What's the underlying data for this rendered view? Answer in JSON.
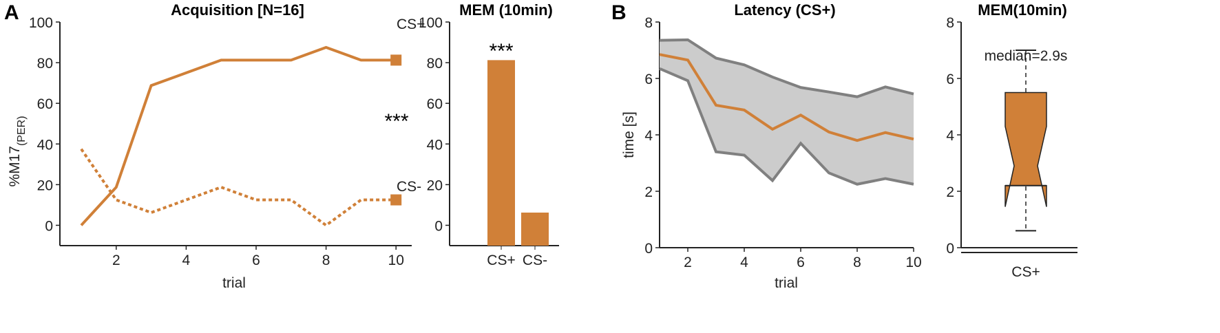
{
  "colors": {
    "accent": "#d08038",
    "band": "#cccccc",
    "bandEdge": "#808080"
  },
  "panel_letters": [
    "A",
    "B"
  ],
  "chart_data": [
    {
      "type": "line",
      "title": "Acquisition [N=16]",
      "xlabel": "trial",
      "ylabel": "%M17",
      "ylabel_sub": "(PER)",
      "ylim": [
        -10,
        100
      ],
      "xlim": [
        0.5,
        10.5
      ],
      "yticks": [
        0,
        20,
        40,
        60,
        80,
        100
      ],
      "xticks": [
        2,
        4,
        6,
        8,
        10
      ],
      "x": [
        1,
        2,
        3,
        4,
        5,
        6,
        7,
        8,
        9,
        10
      ],
      "series": [
        {
          "name": "CS+",
          "style": "solid",
          "values": [
            0,
            18.75,
            68.75,
            75,
            81.25,
            81.25,
            81.25,
            87.5,
            81.25,
            81.25
          ]
        },
        {
          "name": "CS-",
          "style": "dotted",
          "values": [
            37.5,
            12.5,
            6.25,
            12.5,
            18.75,
            12.5,
            12.5,
            0,
            12.5,
            12.5
          ]
        }
      ],
      "annotation": "***"
    },
    {
      "type": "bar",
      "title": "MEM (10min)",
      "categories": [
        "CS+",
        "CS-"
      ],
      "values": [
        81.25,
        6.25
      ],
      "ylim": [
        -10,
        100
      ],
      "yticks": [
        0,
        20,
        40,
        60,
        80,
        100
      ],
      "annotation": "***"
    },
    {
      "type": "area",
      "title": "Latency (CS+)",
      "xlabel": "trial",
      "ylabel": "time [s]",
      "ylim": [
        0,
        8
      ],
      "xlim": [
        1,
        10
      ],
      "yticks": [
        0,
        2,
        4,
        6,
        8
      ],
      "xticks": [
        2,
        4,
        6,
        8,
        10
      ],
      "x": [
        1,
        2,
        3,
        4,
        5,
        6,
        7,
        8,
        9,
        10
      ],
      "series": [
        {
          "name": "mean",
          "values": [
            6.85,
            6.65,
            5.05,
            4.88,
            4.2,
            4.7,
            4.1,
            3.8,
            4.08,
            3.85
          ]
        },
        {
          "name": "upper",
          "values": [
            7.35,
            7.37,
            6.72,
            6.48,
            6.05,
            5.68,
            5.52,
            5.35,
            5.7,
            5.45
          ]
        },
        {
          "name": "lower",
          "values": [
            6.35,
            5.92,
            3.4,
            3.28,
            2.38,
            3.7,
            2.65,
            2.25,
            2.45,
            2.25
          ]
        }
      ]
    },
    {
      "type": "box",
      "title": "MEM(10min)",
      "categories": [
        "CS+"
      ],
      "ylim": [
        0,
        8
      ],
      "yticks": [
        0,
        2,
        4,
        6,
        8
      ],
      "box": {
        "min": 0.6,
        "q1": 2.2,
        "median": 2.9,
        "q3": 5.5,
        "max": 7.0,
        "notch_low": 1.45,
        "notch_high": 4.3
      },
      "annotation": "median=2.9s"
    }
  ]
}
